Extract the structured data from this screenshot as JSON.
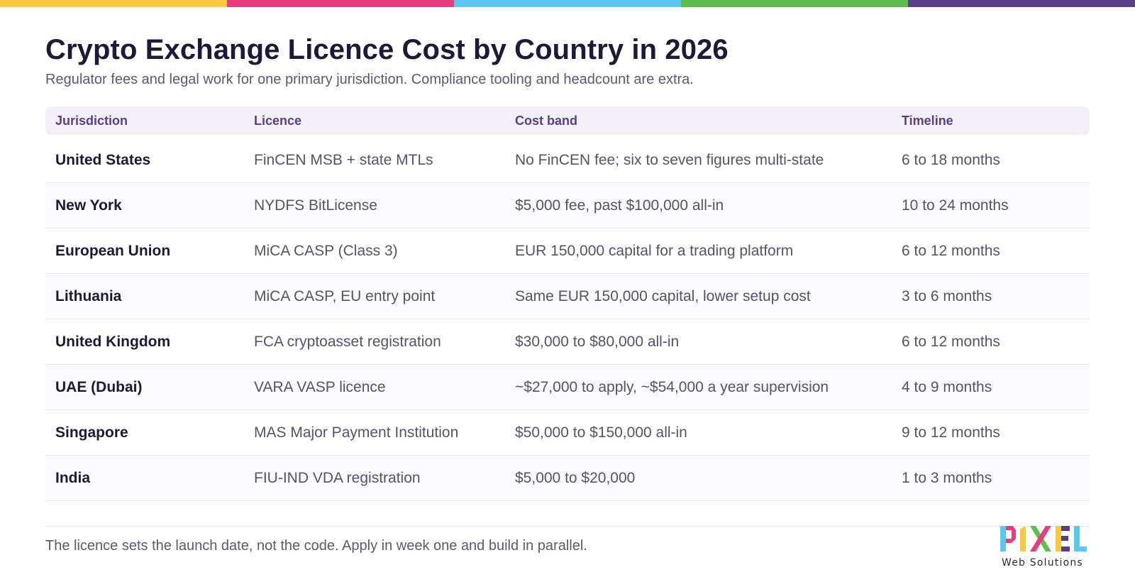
{
  "brand_colors": [
    "#fbc93f",
    "#e63e7d",
    "#5bc6f0",
    "#5fbd4e",
    "#5a3e86"
  ],
  "title": "Crypto Exchange Licence Cost by Country in 2026",
  "subtitle": "Regulator fees and legal work for one primary jurisdiction. Compliance tooling and headcount are extra.",
  "table": {
    "headers": [
      "Jurisdiction",
      "Licence",
      "Cost band",
      "Timeline"
    ],
    "rows": [
      [
        "United States",
        "FinCEN MSB + state MTLs",
        "No FinCEN fee; six to seven figures multi-state",
        "6 to 18 months"
      ],
      [
        "New York",
        "NYDFS BitLicense",
        "$5,000 fee, past $100,000 all-in",
        "10 to 24 months"
      ],
      [
        "European Union",
        "MiCA CASP (Class 3)",
        "EUR 150,000 capital for a trading platform",
        "6 to 12 months"
      ],
      [
        "Lithuania",
        "MiCA CASP, EU entry point",
        "Same EUR 150,000 capital, lower setup cost",
        "3 to 6 months"
      ],
      [
        "United Kingdom",
        "FCA cryptoasset registration",
        "$30,000 to $80,000 all-in",
        "6 to 12 months"
      ],
      [
        "UAE (Dubai)",
        "VARA VASP licence",
        "~$27,000 to apply, ~$54,000 a year supervision",
        "4 to 9 months"
      ],
      [
        "Singapore",
        "MAS Major Payment Institution",
        "$50,000 to $150,000 all-in",
        "9 to 12 months"
      ],
      [
        "India",
        "FIU-IND VDA registration",
        "$5,000 to $20,000",
        "1 to 3 months"
      ]
    ]
  },
  "footer": "The licence sets the launch date, not the code. Apply in week one and build in parallel.",
  "logo": {
    "wordmark": "PIXEL",
    "tagline": "Web Solutions"
  }
}
